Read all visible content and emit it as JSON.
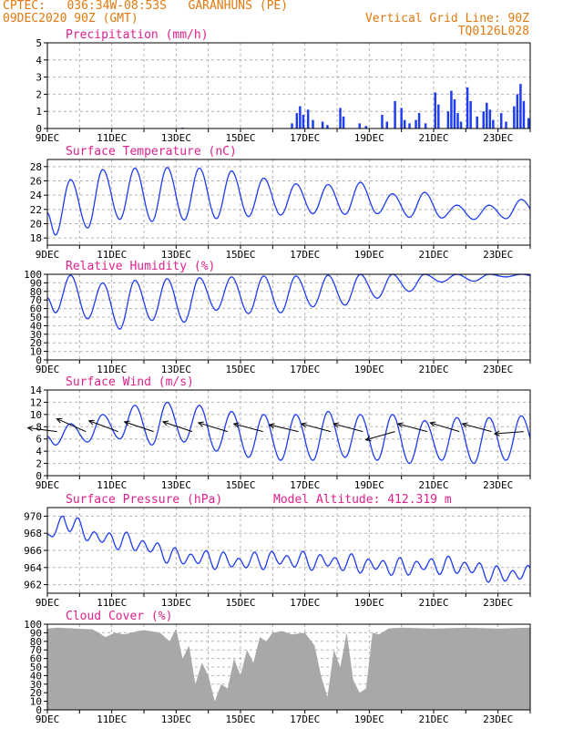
{
  "header": {
    "line1": "CPTEC:   036:34W-08:53S   GARANHUNS (PE)",
    "line2": "09DEC2020 90Z (GMT)",
    "right1": "Vertical Grid Line: 90Z",
    "right2": "TQ0126L028"
  },
  "colors": {
    "header": "#e07a10",
    "title": "#e0208c",
    "line": "#1e3cf0",
    "bar": "#1e3cf0",
    "cloud": "#a8a8a8",
    "grid": "#b4b4b4",
    "axis": "#000000"
  },
  "x_axis": {
    "labels": [
      "9DEC",
      "11DEC",
      "13DEC",
      "15DEC",
      "17DEC",
      "19DEC",
      "21DEC",
      "23DEC"
    ],
    "xlim": [
      0,
      15
    ]
  },
  "chart_data": [
    {
      "id": "precip",
      "type": "bar",
      "title": "Precipitation (mm/h)",
      "ylim": [
        0,
        5
      ],
      "yticks": [
        0,
        1,
        2,
        3,
        4,
        5
      ],
      "x": [
        0.5,
        1.7,
        4.2,
        7.6,
        7.75,
        7.85,
        7.95,
        8.1,
        8.25,
        8.55,
        8.7,
        9.1,
        9.2,
        9.7,
        9.9,
        10.4,
        10.55,
        10.8,
        11.0,
        11.1,
        11.25,
        11.45,
        11.55,
        11.75,
        12.05,
        12.15,
        12.45,
        12.55,
        12.65,
        12.75,
        12.85,
        13.05,
        13.15,
        13.35,
        13.55,
        13.65,
        13.75,
        13.85,
        14.1,
        14.25,
        14.5,
        14.6,
        14.7,
        14.8,
        14.95
      ],
      "values": [
        0.02,
        0.03,
        0.05,
        0.3,
        0.9,
        1.3,
        0.8,
        1.1,
        0.5,
        0.4,
        0.2,
        1.2,
        0.7,
        0.3,
        0.15,
        0.8,
        0.4,
        1.6,
        1.2,
        0.5,
        0.3,
        0.5,
        0.9,
        0.3,
        2.1,
        1.4,
        1.0,
        2.2,
        1.7,
        0.9,
        0.4,
        2.4,
        1.6,
        0.7,
        1.0,
        1.5,
        1.1,
        0.5,
        0.9,
        0.4,
        1.3,
        2.0,
        2.6,
        1.6,
        0.6
      ],
      "bar_width": 0.07
    },
    {
      "id": "temp",
      "type": "line",
      "title": "Surface Temperature (nC)",
      "ylim": [
        17,
        29
      ],
      "yticks": [
        18,
        20,
        22,
        24,
        26,
        28
      ],
      "diurnal": {
        "mins": [
          18.4,
          19.4,
          20.6,
          20.3,
          20.5,
          20.7,
          21.0,
          21.2,
          21.4,
          21.3,
          21.4,
          20.9,
          20.8,
          20.6,
          20.7,
          21.0
        ],
        "maxs": [
          26.2,
          27.6,
          27.8,
          27.9,
          27.8,
          27.4,
          26.4,
          25.6,
          25.5,
          25.8,
          24.2,
          24.4,
          22.6,
          22.6,
          23.4
        ],
        "mean": 22,
        "amp": 0.5
      }
    },
    {
      "id": "rh",
      "type": "line",
      "title": "Relative Humidity (%)",
      "ylim": [
        0,
        100
      ],
      "yticks": [
        0,
        10,
        20,
        30,
        40,
        50,
        60,
        70,
        80,
        90,
        100
      ],
      "diurnal": {
        "mins": [
          55,
          48,
          36,
          46,
          44,
          58,
          54,
          55,
          62,
          64,
          72,
          80,
          91,
          92,
          97
        ],
        "maxs": [
          99,
          90,
          93,
          95,
          96,
          97,
          98,
          98,
          99,
          100,
          100,
          100,
          100,
          100,
          100,
          100
        ],
        "mean": 75,
        "amp": 0
      }
    },
    {
      "id": "wind",
      "type": "line",
      "title": "Surface Wind (m/s)",
      "ylim": [
        0,
        14
      ],
      "yticks": [
        0,
        2,
        4,
        6,
        8,
        10,
        12,
        14
      ],
      "diurnal": {
        "mins": [
          5.0,
          5.5,
          6.0,
          5.0,
          5.5,
          4.0,
          3.0,
          2.5,
          2.5,
          3.0,
          2.5,
          2.0,
          2.5,
          2.0,
          2.5,
          3.0
        ],
        "maxs": [
          8.5,
          10.0,
          11.5,
          12.0,
          11.5,
          10.5,
          10.0,
          10.0,
          10.5,
          10.0,
          10.0,
          9.0,
          9.5,
          9.5,
          9.8
        ],
        "mean": 7.2,
        "amp": 0.8
      },
      "vectors": [
        [
          0.3,
          -1,
          0.1
        ],
        [
          1.2,
          -1,
          0.55
        ],
        [
          2.2,
          -1,
          0.45
        ],
        [
          3.3,
          -1,
          0.4
        ],
        [
          4.5,
          -1,
          0.4
        ],
        [
          5.6,
          -1,
          0.35
        ],
        [
          6.7,
          -1,
          0.3
        ],
        [
          7.8,
          -1,
          0.25
        ],
        [
          8.8,
          -1,
          0.3
        ],
        [
          9.8,
          -1,
          0.3
        ],
        [
          10.8,
          -1,
          -0.5
        ],
        [
          11.8,
          -1,
          0.3
        ],
        [
          12.8,
          -1,
          0.35
        ],
        [
          13.8,
          -1,
          0.3
        ],
        [
          14.8,
          -1,
          -0.2
        ]
      ]
    },
    {
      "id": "pres",
      "type": "line",
      "title": "Surface Pressure (hPa)",
      "annotation": "Model Altitude: 412.319 m",
      "ylim": [
        961,
        971
      ],
      "yticks": [
        962,
        964,
        966,
        968,
        970
      ],
      "semidiurnal": {
        "trend": [
          [
            0,
            967.2
          ],
          [
            0.5,
            969.6
          ],
          [
            1.5,
            967.5
          ],
          [
            2.5,
            967.0
          ],
          [
            3.0,
            966.6
          ],
          [
            4.0,
            965.2
          ],
          [
            5.0,
            965.0
          ],
          [
            6.0,
            964.6
          ],
          [
            7.0,
            965.0
          ],
          [
            8.0,
            964.8
          ],
          [
            9.0,
            964.6
          ],
          [
            10.0,
            964.3
          ],
          [
            11.0,
            964.0
          ],
          [
            12.0,
            964.3
          ],
          [
            13.0,
            964.1
          ],
          [
            14.0,
            963.1
          ],
          [
            15.0,
            963.3
          ]
        ],
        "amp": 1.6
      }
    },
    {
      "id": "cloud",
      "type": "area",
      "title": "Cloud Cover (%)",
      "ylim": [
        0,
        100
      ],
      "yticks": [
        0,
        10,
        20,
        30,
        40,
        50,
        60,
        70,
        80,
        90,
        100
      ],
      "x": [
        0,
        0.3,
        1.4,
        1.6,
        1.8,
        2.1,
        2.4,
        2.8,
        3.0,
        3.2,
        3.5,
        3.8,
        4.0,
        4.2,
        4.4,
        4.6,
        4.8,
        5.0,
        5.2,
        5.4,
        5.6,
        5.8,
        6.0,
        6.2,
        6.4,
        6.6,
        6.8,
        7.0,
        7.3,
        7.6,
        8.0,
        8.3,
        8.5,
        8.7,
        8.9,
        9.1,
        9.3,
        9.5,
        9.7,
        9.9,
        10.1,
        10.3,
        10.6,
        11.0,
        12.0,
        13.0,
        14.0,
        15.0
      ],
      "values": [
        95,
        96,
        94,
        90,
        85,
        90,
        88,
        92,
        93,
        92,
        90,
        80,
        95,
        60,
        75,
        30,
        55,
        40,
        10,
        30,
        25,
        60,
        40,
        70,
        55,
        85,
        80,
        90,
        92,
        88,
        90,
        75,
        40,
        15,
        70,
        50,
        90,
        35,
        20,
        25,
        90,
        88,
        95,
        96,
        95,
        96,
        95,
        96
      ]
    }
  ]
}
